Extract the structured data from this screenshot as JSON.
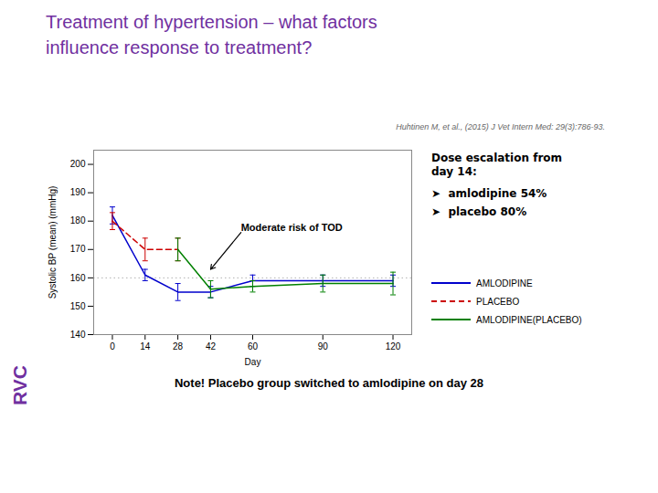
{
  "chart_data": {
    "type": "line",
    "title": "Treatment of hypertension – what factors\ninfluence response to treatment?",
    "title_color": "#7030a0",
    "reference": "Huhtinen M, et al., (2015) J Vet Intern Med: 29(3):786-93.",
    "xlabel": "Day",
    "ylabel": "Systolic BP (mean) (mmHg)",
    "xlim": [
      -8,
      128
    ],
    "ylim": [
      140,
      205
    ],
    "xticks": [
      0,
      14,
      28,
      42,
      60,
      90,
      120
    ],
    "yticks": [
      140,
      150,
      160,
      170,
      180,
      190,
      200
    ],
    "grid": false,
    "legend": "right",
    "reference_lines": [
      {
        "y": 160,
        "color": "#b0b0b0",
        "line_style": "dotted"
      }
    ],
    "series": [
      {
        "name": "AMLODIPINE",
        "color": "#0000cc",
        "line_style": "solid",
        "x": [
          0,
          14,
          28,
          42,
          60,
          90,
          120
        ],
        "values": [
          182,
          161,
          155,
          155,
          159,
          159,
          159
        ],
        "error": [
          3,
          2,
          3,
          2,
          2,
          2,
          2
        ]
      },
      {
        "name": "PLACEBO",
        "color": "#cc0000",
        "line_style": "dashed",
        "x": [
          0,
          14,
          28
        ],
        "values": [
          180,
          170,
          170
        ],
        "error": [
          3,
          4,
          4
        ]
      },
      {
        "name": "AMLODIPINE(PLACEBO)",
        "color": "#008000",
        "line_style": "solid",
        "x": [
          28,
          42,
          60,
          90,
          120
        ],
        "values": [
          170,
          156,
          157,
          158,
          158
        ],
        "error": [
          4,
          3,
          2,
          3,
          4
        ]
      }
    ],
    "annotations": [
      {
        "text": "Moderate risk of TOD",
        "x": 55,
        "y": 176,
        "arrow_x": 42,
        "arrow_y": 163
      }
    ],
    "side_title": "Dose escalation from\nday 14:",
    "side_items": [
      "➤  amlodipine 54%",
      "➤  placebo 80%"
    ],
    "note": "Note! Placebo group switched to amlodipine on day 28",
    "logo": "RVC",
    "logo_color": "#7030a0"
  }
}
